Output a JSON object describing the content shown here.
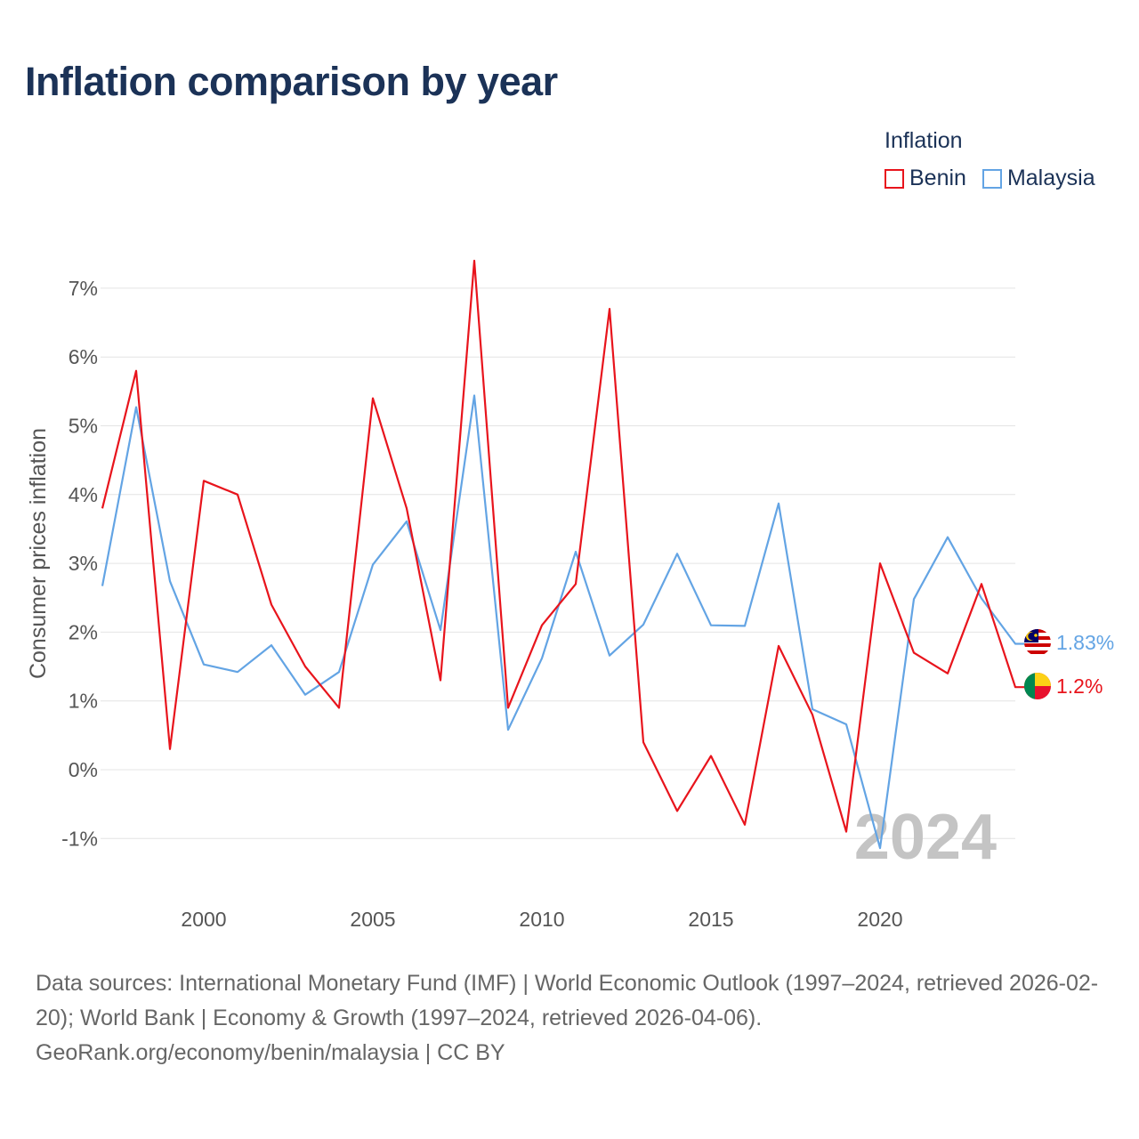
{
  "title": "Inflation comparison by year",
  "legend": {
    "title": "Inflation",
    "items": [
      {
        "name": "Benin",
        "color": "#e8141c"
      },
      {
        "name": "Malaysia",
        "color": "#63a4e4"
      }
    ]
  },
  "watermark_year": "2024",
  "footer": {
    "line1": "Data sources: International Monetary Fund (IMF) | World Economic Outlook (1997–2024, retrieved 2026-02-20); World Bank | Economy & Growth (1997–2024, retrieved 2026-04-06).",
    "line2": "GeoRank.org/economy/benin/malaysia | CC BY"
  },
  "chart_data": {
    "type": "line",
    "title": "Inflation comparison by year",
    "xlabel": "",
    "ylabel": "Consumer prices inflation",
    "x": [
      1997,
      1998,
      1999,
      2000,
      2001,
      2002,
      2003,
      2004,
      2005,
      2006,
      2007,
      2008,
      2009,
      2010,
      2011,
      2012,
      2013,
      2014,
      2015,
      2016,
      2017,
      2018,
      2019,
      2020,
      2021,
      2022,
      2023,
      2024
    ],
    "xlim": [
      1997,
      2024
    ],
    "ylim": [
      -1.5,
      7.5
    ],
    "x_ticks": [
      2000,
      2005,
      2010,
      2015,
      2020
    ],
    "y_ticks": [
      -1,
      0,
      1,
      2,
      3,
      4,
      5,
      6,
      7
    ],
    "y_tick_labels": [
      "-1%",
      "0%",
      "1%",
      "2%",
      "3%",
      "4%",
      "5%",
      "6%",
      "7%"
    ],
    "grid": true,
    "legend_position": "top-right",
    "series": [
      {
        "name": "Benin",
        "color": "#e8141c",
        "end_label": "1.2%",
        "values": [
          3.8,
          5.8,
          0.3,
          4.2,
          4.0,
          2.4,
          1.5,
          0.9,
          5.4,
          3.8,
          1.3,
          7.4,
          0.9,
          2.1,
          2.7,
          6.7,
          0.4,
          -0.6,
          0.2,
          -0.8,
          1.8,
          0.8,
          -0.9,
          3.0,
          1.7,
          1.4,
          2.7,
          1.2
        ]
      },
      {
        "name": "Malaysia",
        "color": "#63a4e4",
        "end_label": "1.83%",
        "values": [
          2.67,
          5.27,
          2.74,
          1.53,
          1.42,
          1.81,
          1.09,
          1.42,
          2.98,
          3.61,
          2.03,
          5.44,
          0.58,
          1.62,
          3.17,
          1.66,
          2.11,
          3.14,
          2.1,
          2.09,
          3.87,
          0.88,
          0.66,
          -1.14,
          2.48,
          3.38,
          2.49,
          1.83
        ]
      }
    ]
  }
}
